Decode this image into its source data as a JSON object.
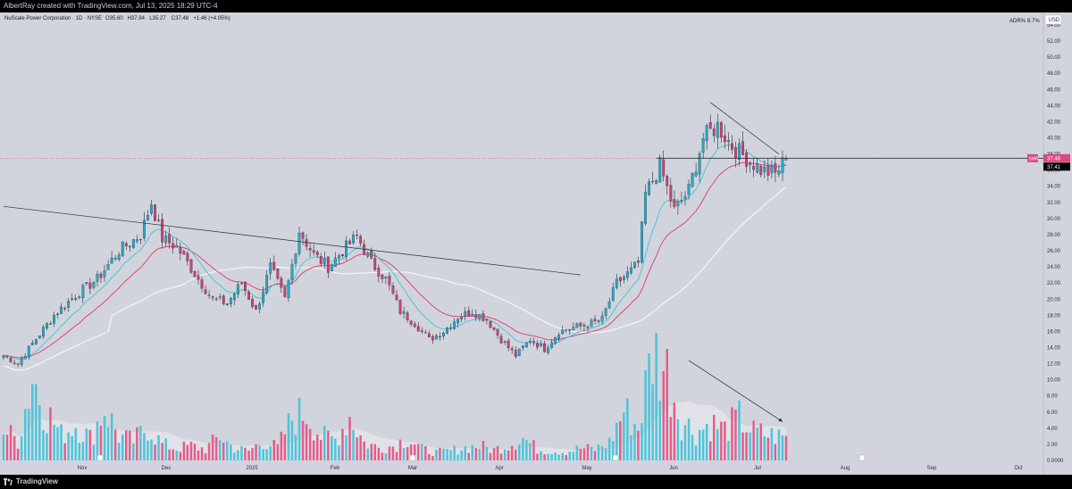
{
  "watermark": "AlbertRay created with TradingView.com, Jul 13, 2025 18:29 UTC-4",
  "footer_brand": "TradingView",
  "chart_data": {
    "type": "candlestick",
    "legend": {
      "symbol": "NuScale Power Corporation · 1D · NYSE",
      "open": "O35.60",
      "high": "H37.94",
      "low": "L35.27",
      "close": "C37.48",
      "change": "+1.46 (+4.05%)"
    },
    "adr_label": "ADR%",
    "adr_value": "8.7%",
    "currency": "USD",
    "y_ticks": [
      "54.00",
      "52.00",
      "50.00",
      "48.00",
      "46.00",
      "44.00",
      "42.00",
      "40.00",
      "38.00",
      "36.00",
      "34.00",
      "32.00",
      "30.00",
      "28.00",
      "26.00",
      "24.00",
      "22.00",
      "20.00",
      "18.00",
      "16.00",
      "14.00",
      "12.00",
      "10.00",
      "8.00",
      "6.00",
      "4.00",
      "2.00",
      "0.0000"
    ],
    "ylim": [
      0,
      54
    ],
    "x_ticks": [
      "Nov",
      "Dec",
      "2025",
      "Feb",
      "Mar",
      "Apr",
      "May",
      "Jun",
      "Jul",
      "Aug",
      "Sep",
      "Oct"
    ],
    "last_price_label": "37.48",
    "last_price_tag": "SMR",
    "ma_price_label": "37.41",
    "last_price": 37.48,
    "trendline_1": [
      [
        0,
        31.5
      ],
      [
        160,
        23.0
      ]
    ],
    "trendline_2": [
      [
        196,
        44.4
      ],
      [
        215,
        38.0
      ]
    ],
    "volume_trendline": [
      [
        190,
        12.4
      ],
      [
        216,
        4.8
      ]
    ],
    "price_path": [
      [
        0,
        13.0
      ],
      [
        4,
        12.0
      ],
      [
        8,
        14.5
      ],
      [
        14,
        18.0
      ],
      [
        20,
        20.5
      ],
      [
        26,
        22.5
      ],
      [
        32,
        26.0
      ],
      [
        38,
        28.0
      ],
      [
        41,
        32.0
      ],
      [
        44,
        27.5
      ],
      [
        48,
        26.5
      ],
      [
        54,
        22.5
      ],
      [
        58,
        20.0
      ],
      [
        62,
        19.5
      ],
      [
        66,
        22.0
      ],
      [
        70,
        18.5
      ],
      [
        74,
        24.0
      ],
      [
        78,
        20.0
      ],
      [
        82,
        28.5
      ],
      [
        86,
        25.5
      ],
      [
        90,
        24.0
      ],
      [
        94,
        26.0
      ],
      [
        98,
        27.8
      ],
      [
        102,
        24.5
      ],
      [
        106,
        22.5
      ],
      [
        110,
        18.5
      ],
      [
        114,
        17.0
      ],
      [
        118,
        15.0
      ],
      [
        122,
        16.0
      ],
      [
        126,
        17.8
      ],
      [
        130,
        18.5
      ],
      [
        134,
        17.5
      ],
      [
        138,
        15.0
      ],
      [
        142,
        13.0
      ],
      [
        146,
        15.0
      ],
      [
        150,
        13.8
      ],
      [
        154,
        16.0
      ],
      [
        158,
        16.5
      ],
      [
        162,
        16.8
      ],
      [
        166,
        17.5
      ],
      [
        170,
        22.0
      ],
      [
        174,
        23.5
      ],
      [
        176,
        24.5
      ],
      [
        178,
        33.0
      ],
      [
        182,
        36.5
      ],
      [
        186,
        31.0
      ],
      [
        190,
        33.5
      ],
      [
        194,
        40.0
      ],
      [
        198,
        41.5
      ],
      [
        202,
        39.0
      ],
      [
        206,
        37.5
      ],
      [
        210,
        36.0
      ],
      [
        214,
        35.5
      ],
      [
        217,
        37.48
      ]
    ],
    "volume": [
      [
        0,
        3.8
      ],
      [
        4,
        2.5
      ],
      [
        8,
        10.5
      ],
      [
        12,
        6.0
      ],
      [
        16,
        3.2
      ],
      [
        20,
        4.5
      ],
      [
        24,
        2.8
      ],
      [
        28,
        6.5
      ],
      [
        32,
        3.0
      ],
      [
        36,
        2.4
      ],
      [
        40,
        4.2
      ],
      [
        44,
        2.0
      ],
      [
        48,
        1.5
      ],
      [
        52,
        1.8
      ],
      [
        56,
        1.4
      ],
      [
        60,
        3.0
      ],
      [
        64,
        1.5
      ],
      [
        68,
        1.2
      ],
      [
        72,
        2.4
      ],
      [
        76,
        1.6
      ],
      [
        80,
        5.2
      ],
      [
        84,
        6.0
      ],
      [
        88,
        3.0
      ],
      [
        92,
        2.6
      ],
      [
        96,
        5.5
      ],
      [
        100,
        2.2
      ],
      [
        104,
        1.6
      ],
      [
        108,
        1.8
      ],
      [
        112,
        2.8
      ],
      [
        116,
        1.4
      ],
      [
        120,
        1.0
      ],
      [
        124,
        1.2
      ],
      [
        128,
        1.6
      ],
      [
        132,
        1.8
      ],
      [
        136,
        1.3
      ],
      [
        140,
        2.0
      ],
      [
        144,
        2.8
      ],
      [
        148,
        1.4
      ],
      [
        152,
        1.2
      ],
      [
        156,
        1.1
      ],
      [
        160,
        1.5
      ],
      [
        164,
        1.4
      ],
      [
        168,
        2.2
      ],
      [
        172,
        6.2
      ],
      [
        176,
        4.0
      ],
      [
        180,
        13.5
      ],
      [
        184,
        11.0
      ],
      [
        188,
        5.0
      ],
      [
        192,
        3.5
      ],
      [
        196,
        4.6
      ],
      [
        200,
        3.8
      ],
      [
        204,
        5.2
      ],
      [
        208,
        3.5
      ],
      [
        212,
        3.2
      ],
      [
        217,
        2.8
      ]
    ]
  }
}
